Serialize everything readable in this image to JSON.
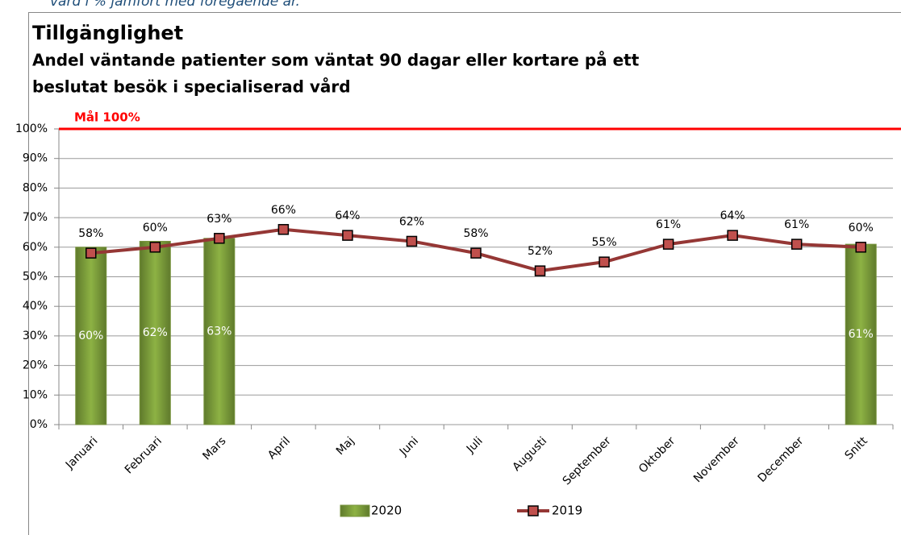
{
  "caption": "vård i % jämfört med föregående år.",
  "chart_data": {
    "type": "bar",
    "title": "Tillgänglighet",
    "subtitle": [
      "Andel väntande patienter som väntat 90 dagar eller kortare på ett",
      "beslutat besök i specialiserad vård"
    ],
    "categories": [
      "Januari",
      "Februari",
      "Mars",
      "April",
      "Maj",
      "Juni",
      "Juli",
      "Augusti",
      "September",
      "Oktober",
      "November",
      "December",
      "Snitt"
    ],
    "series": [
      {
        "name": "2020",
        "type": "bar",
        "color": "#77933c",
        "values": [
          60,
          62,
          63,
          null,
          null,
          null,
          null,
          null,
          null,
          null,
          null,
          null,
          61
        ],
        "value_labels": [
          "60%",
          "62%",
          "63%",
          null,
          null,
          null,
          null,
          null,
          null,
          null,
          null,
          null,
          "61%"
        ]
      },
      {
        "name": "2019",
        "type": "line",
        "color": "#953735",
        "values": [
          58,
          60,
          63,
          66,
          64,
          62,
          58,
          52,
          55,
          61,
          64,
          61,
          60
        ],
        "value_labels": [
          "58%",
          "60%",
          "63%",
          "66%",
          "64%",
          "62%",
          "58%",
          "52%",
          "55%",
          "61%",
          "64%",
          "61%",
          "60%"
        ]
      }
    ],
    "target": {
      "value": 100,
      "label": "Mål 100%",
      "color": "#ff0000"
    },
    "ylim": [
      0,
      100
    ],
    "yticks": [
      {
        "value": 0,
        "label": "0%"
      },
      {
        "value": 10,
        "label": "10%"
      },
      {
        "value": 20,
        "label": "20%"
      },
      {
        "value": 30,
        "label": "30%"
      },
      {
        "value": 40,
        "label": "40%"
      },
      {
        "value": 50,
        "label": "50%"
      },
      {
        "value": 60,
        "label": "60%"
      },
      {
        "value": 70,
        "label": "70%"
      },
      {
        "value": 80,
        "label": "80%"
      },
      {
        "value": 90,
        "label": "90%"
      },
      {
        "value": 100,
        "label": "100%"
      }
    ],
    "grid": true,
    "legend": "bottom"
  }
}
